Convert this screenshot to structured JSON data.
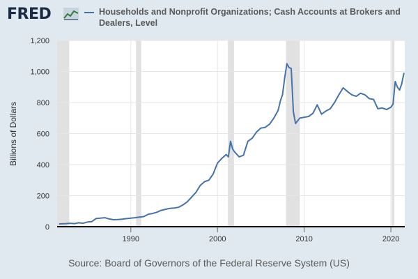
{
  "logo": {
    "text": "FRED"
  },
  "chart_data": {
    "type": "line",
    "title": "Households and Nonprofit Organizations; Cash Accounts at Brokers and Dealers, Level",
    "xlabel": "",
    "ylabel": "Billions of Dollars",
    "source": "Source: Board of Governors of the Federal Reserve System (US)",
    "xlim": [
      1981.5,
      2021.6
    ],
    "ylim": [
      0,
      1200
    ],
    "yticks": [
      0,
      200,
      400,
      600,
      800,
      1000,
      1200
    ],
    "ytick_labels": [
      "0",
      "200",
      "400",
      "600",
      "800",
      "1,000",
      "1,200"
    ],
    "xticks": [
      1990,
      2000,
      2010,
      2020
    ],
    "xtick_labels": [
      "1990",
      "2000",
      "2010",
      "2020"
    ],
    "grid": true,
    "colors": {
      "line": "#4572a7",
      "recession": "#e1e1e1",
      "background": "#e1e9f0",
      "grid": "#e6e6e6"
    },
    "recessions": [
      [
        1981.5,
        1982.9
      ],
      [
        1990.6,
        1991.2
      ],
      [
        2001.2,
        2001.9
      ],
      [
        2007.9,
        2009.5
      ],
      [
        2020.1,
        2020.4
      ]
    ],
    "series": [
      {
        "name": "Households and Nonprofit Organizations; Cash Accounts at Brokers and Dealers, Level",
        "x": [
          1981.75,
          1982.5,
          1983.0,
          1983.5,
          1984.0,
          1984.5,
          1985.0,
          1985.5,
          1986.0,
          1986.5,
          1987.0,
          1987.5,
          1988.0,
          1988.5,
          1989.0,
          1989.5,
          1990.0,
          1990.5,
          1991.0,
          1991.5,
          1992.0,
          1992.5,
          1993.0,
          1993.5,
          1994.0,
          1994.5,
          1995.0,
          1995.5,
          1996.0,
          1996.5,
          1997.0,
          1997.5,
          1998.0,
          1998.5,
          1999.0,
          1999.5,
          2000.0,
          2000.5,
          2001.0,
          2001.25,
          2001.5,
          2001.75,
          2002.0,
          2002.5,
          2003.0,
          2003.5,
          2004.0,
          2004.5,
          2005.0,
          2005.5,
          2006.0,
          2006.5,
          2007.0,
          2007.25,
          2007.5,
          2007.75,
          2008.0,
          2008.25,
          2008.5,
          2008.75,
          2009.0,
          2009.5,
          2010.0,
          2010.5,
          2011.0,
          2011.5,
          2012.0,
          2012.5,
          2013.0,
          2013.5,
          2014.0,
          2014.5,
          2015.0,
          2015.5,
          2016.0,
          2016.5,
          2017.0,
          2017.5,
          2018.0,
          2018.5,
          2019.0,
          2019.5,
          2020.0,
          2020.25,
          2020.5,
          2020.75,
          2021.0,
          2021.25,
          2021.5
        ],
        "values": [
          18,
          20,
          22,
          20,
          25,
          22,
          30,
          33,
          53,
          55,
          58,
          50,
          45,
          46,
          48,
          52,
          55,
          58,
          62,
          65,
          80,
          85,
          93,
          105,
          112,
          118,
          120,
          125,
          140,
          160,
          190,
          220,
          265,
          290,
          300,
          340,
          410,
          440,
          465,
          450,
          550,
          500,
          480,
          450,
          460,
          550,
          570,
          610,
          635,
          640,
          660,
          700,
          750,
          810,
          850,
          960,
          1050,
          1025,
          1020,
          740,
          665,
          700,
          705,
          710,
          730,
          785,
          725,
          745,
          760,
          800,
          850,
          895,
          870,
          850,
          840,
          860,
          850,
          825,
          820,
          760,
          765,
          755,
          770,
          790,
          935,
          900,
          880,
          920,
          990
        ]
      }
    ]
  }
}
